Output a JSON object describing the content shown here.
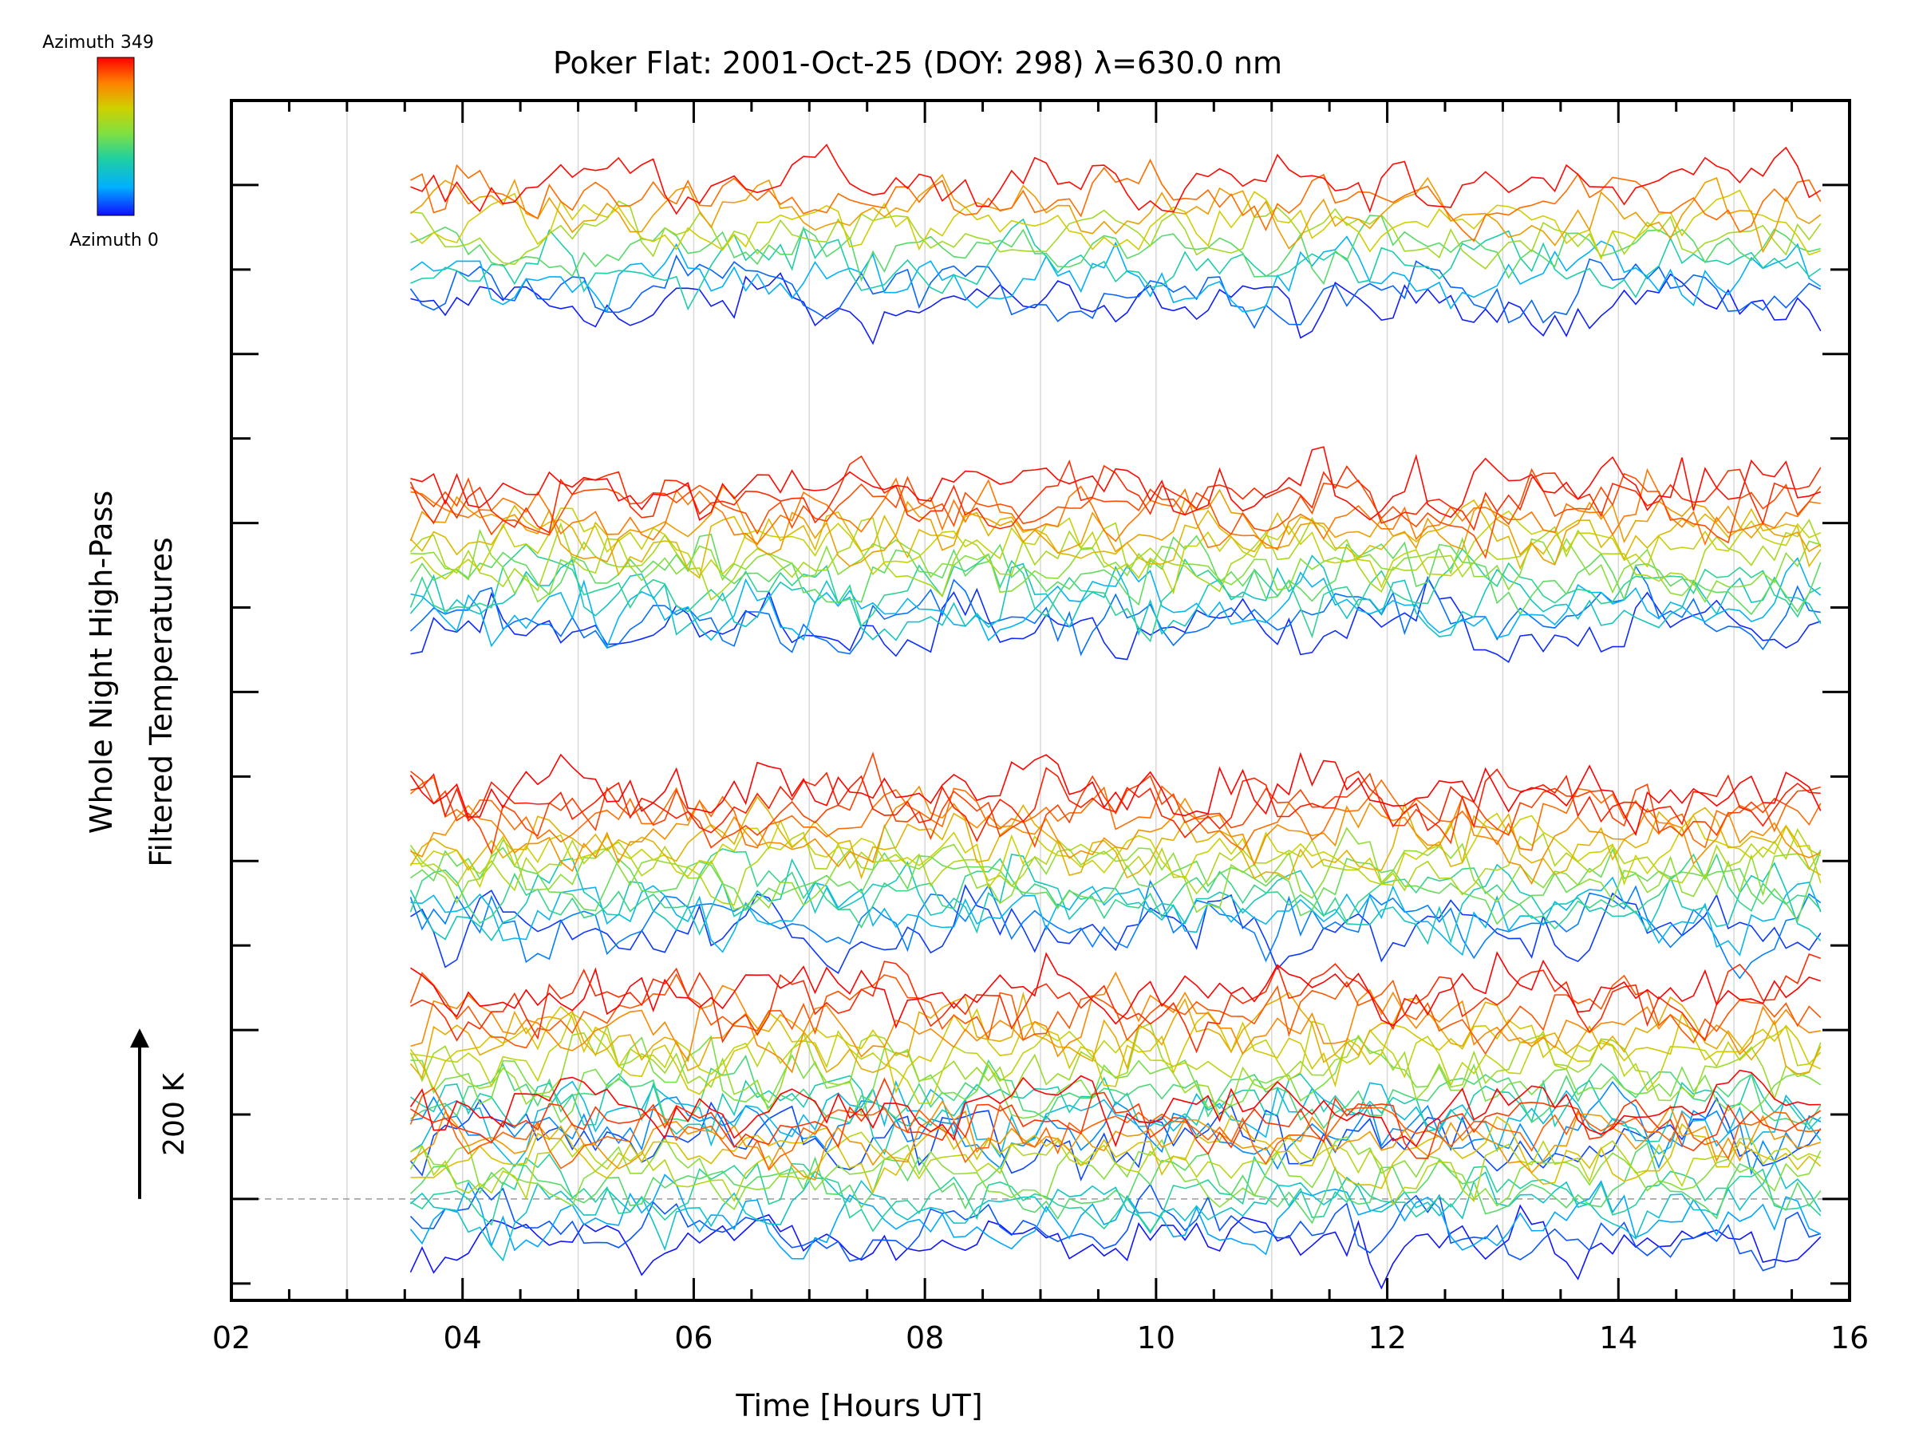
{
  "chart_data": {
    "type": "line",
    "title": "Poker Flat: 2001-Oct-25 (DOY: 298) λ=630.0 nm",
    "xlabel": "Time [Hours UT]",
    "ylabel_line1": "Whole Night High-Pass",
    "ylabel_line2": "Filtered Temperatures",
    "xlim": [
      2,
      16
    ],
    "x_tick_labels": [
      "02",
      "04",
      "06",
      "08",
      "10",
      "12",
      "14",
      "16"
    ],
    "x_grid_hours": [
      3,
      4,
      5,
      6,
      7,
      8,
      9,
      10,
      11,
      12,
      13,
      14,
      15
    ],
    "data_time_range": [
      3.55,
      15.75
    ],
    "sample_interval_hours": 0.1,
    "ylim_K": [
      -120,
      1300
    ],
    "y_major_tick_step_K": 200,
    "y_reference_line_K": 0,
    "scale_bar": {
      "label": "200 K",
      "value_K": 200
    },
    "stacking": "Filtered temperature traces offset vertically by direction; color encodes azimuth",
    "colorbar": {
      "top_label": "Azimuth 349",
      "bottom_label": "Azimuth 0",
      "colors": [
        "#1010ff",
        "#00b0ff",
        "#20d0a0",
        "#80e040",
        "#d0d000",
        "#ff8000",
        "#ff0000"
      ]
    },
    "groups": [
      {
        "baseline_K": 1130,
        "spread_K": 12,
        "azimuths": [
          5,
          30,
          60,
          110,
          150,
          200,
          235,
          270,
          300,
          345
        ]
      },
      {
        "baseline_K": 760,
        "spread_K": 14,
        "azimuths": [
          10,
          35,
          65,
          95,
          125,
          155,
          180,
          205,
          225,
          250,
          270,
          295,
          315,
          330,
          345
        ]
      },
      {
        "baseline_K": 400,
        "spread_K": 14,
        "azimuths": [
          15,
          40,
          70,
          100,
          130,
          160,
          185,
          210,
          230,
          255,
          280,
          300,
          320,
          335,
          348
        ]
      },
      {
        "baseline_K": 160,
        "spread_K": 15,
        "azimuths": [
          20,
          45,
          75,
          105,
          140,
          170,
          195,
          220,
          240,
          260,
          285,
          310,
          330,
          349
        ]
      },
      {
        "baseline_K": 30,
        "spread_K": 13,
        "azimuths": [
          2,
          25,
          55,
          90,
          120,
          150,
          180,
          215,
          245,
          275,
          305,
          325,
          349
        ]
      }
    ]
  }
}
